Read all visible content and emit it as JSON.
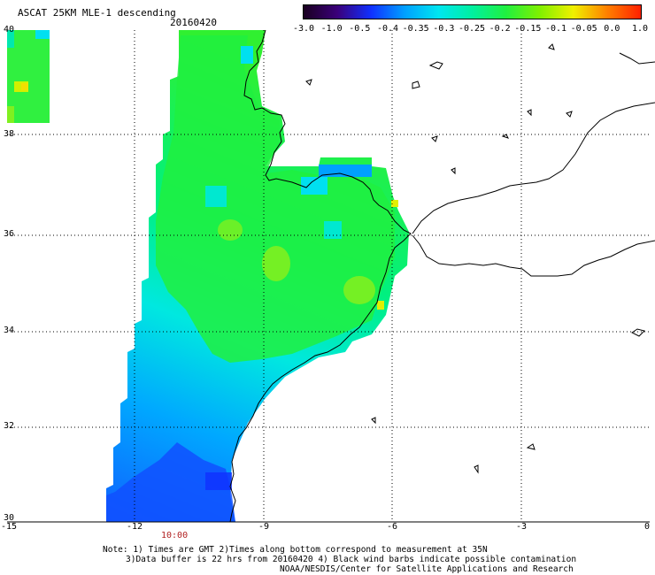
{
  "header": {
    "title": "ASCAT 25KM MLE-1 descending",
    "date": "20160420"
  },
  "colorbar": {
    "labels": [
      "-3.0",
      "-1.0",
      "-0.5",
      "-0.4",
      "-0.35",
      "-0.3",
      "-0.25",
      "-0.2",
      "-0.15",
      "-0.1",
      "-0.05",
      "0.0",
      "1.0"
    ],
    "colors": [
      "#1a0020",
      "#3a007a",
      "#1030ff",
      "#00a0ff",
      "#00e6f0",
      "#00f0a0",
      "#20f040",
      "#80f000",
      "#f0f000",
      "#ff8000",
      "#ff2000"
    ]
  },
  "map": {
    "lat_ticks": [
      "40",
      "38",
      "36",
      "34",
      "32",
      "30"
    ],
    "lon_ticks": [
      "-15",
      "-12",
      "-9",
      "-6",
      "-3",
      "0"
    ],
    "time_label": "10:00",
    "coast_color": "#000000",
    "swath_colors": {
      "blue": "#1060ff",
      "cyan": "#00e0f0",
      "aqua": "#00f0a8",
      "green": "#20f040",
      "lime": "#80f020",
      "yellow": "#f0f000"
    }
  },
  "notes": {
    "line1": "Note: 1) Times are GMT 2)Times along bottom correspond to measurement at 35N",
    "line2": "3)Data buffer is 22 hrs from 20160420 4) Black wind barbs indicate possible contamination",
    "line3": "NOAA/NESDIS/Center for Satellite Applications and Research"
  }
}
